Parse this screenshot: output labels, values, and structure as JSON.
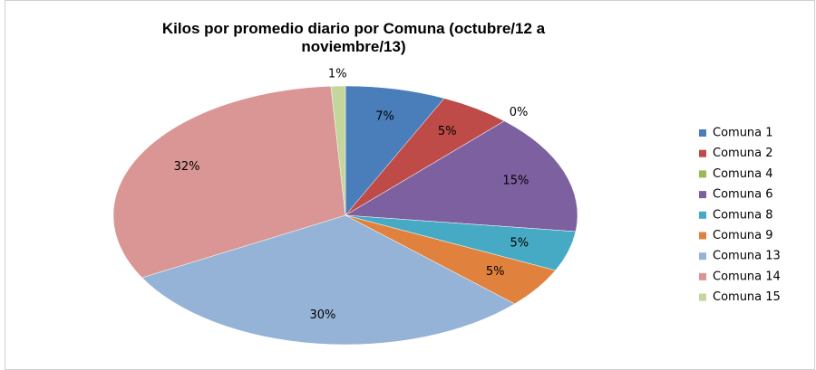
{
  "chart_data": {
    "type": "pie",
    "title": "Kilos por promedio diario por Comuna (octubre/12 a noviembre/13)",
    "categories": [
      "Comuna 1",
      "Comuna 2",
      "Comuna 4",
      "Comuna 6",
      "Comuna 8",
      "Comuna 9",
      "Comuna 13",
      "Comuna 14",
      "Comuna 15"
    ],
    "values": [
      7,
      5,
      0,
      15,
      5,
      5,
      30,
      32,
      1
    ],
    "value_labels": [
      "7%",
      "5%",
      "0%",
      "15%",
      "5%",
      "5%",
      "30%",
      "32%",
      "1%"
    ],
    "colors": [
      "#4a7ebb",
      "#be4b48",
      "#98b954",
      "#7d60a0",
      "#46aac5",
      "#e0823d",
      "#95b3d7",
      "#d99694",
      "#c3d69b"
    ],
    "legend": "right"
  }
}
